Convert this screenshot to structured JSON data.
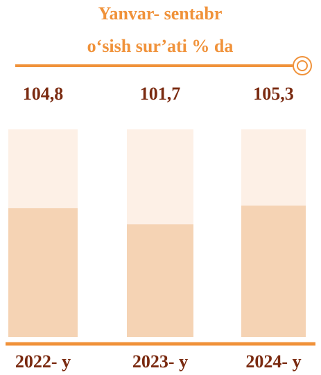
{
  "chart_data": {
    "type": "bar",
    "title": "Yanvar- sentabr",
    "subtitle": "o‘sish sur’ati % da",
    "categories": [
      "2022- y",
      "2023- y",
      "2024- y"
    ],
    "values": [
      104.8,
      101.7,
      105.3
    ],
    "value_labels": [
      "104,8",
      "101,7",
      "105,3"
    ],
    "color": "#f5d3b4",
    "ylim": [
      80,
      120
    ]
  }
}
